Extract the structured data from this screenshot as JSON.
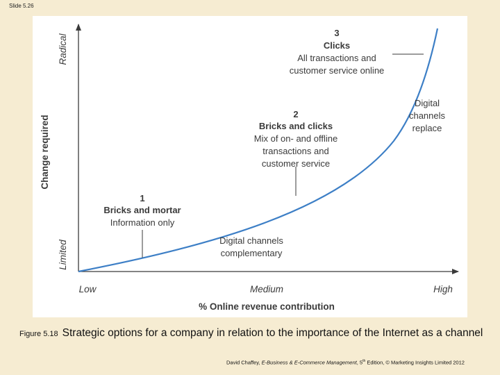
{
  "slide": {
    "number": "Slide 5.26"
  },
  "diagram": {
    "y_axis": {
      "title": "Change required",
      "low_label": "Limited",
      "high_label": "Radical"
    },
    "x_axis": {
      "title": "% Online revenue contribution",
      "low_label": "Low",
      "mid_label": "Medium",
      "high_label": "High"
    },
    "stages": [
      {
        "number": "1",
        "title": "Bricks and mortar",
        "lines": [
          "Information only"
        ]
      },
      {
        "number": "2",
        "title": "Bricks and clicks",
        "lines": [
          "Mix of on- and offline",
          "transactions and",
          "customer service"
        ]
      },
      {
        "number": "3",
        "title": "Clicks",
        "lines": [
          "All transactions and",
          "customer service online"
        ]
      }
    ],
    "annotations": {
      "complementary": [
        "Digital channels",
        "complementary"
      ],
      "replace": [
        "Digital",
        "channels",
        "replace"
      ]
    },
    "curve_color": "#3d7fc6"
  },
  "caption": {
    "label": "Figure 5.18",
    "text": "Strategic options for a company in relation to the importance of the Internet as a channel"
  },
  "credit": {
    "author": "David Chaffey, ",
    "book": "E-Business & E-Commerce Management",
    "edition_num": ", 5",
    "edition_sup": "th",
    "rest": " Edition, © Marketing Insights Limited 2012"
  }
}
